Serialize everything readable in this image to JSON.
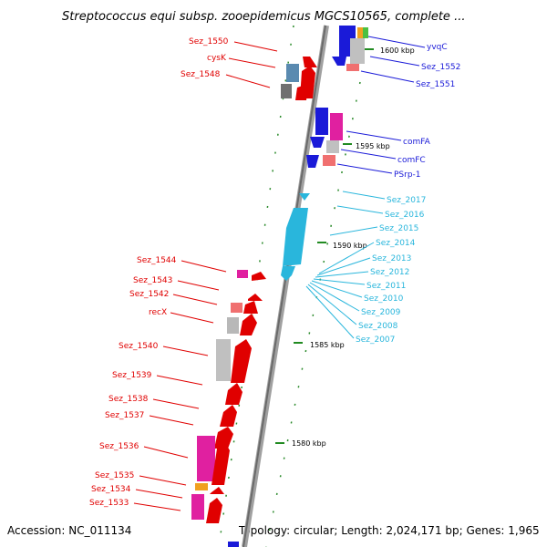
{
  "title": "Streptococcus equi subsp. zooepidemicus MGCS10565, complete ...",
  "accession": "Accession: NC_011134",
  "topology": "Topology: circular; Length: 2,024,171 bp; Genes: 1,965",
  "ticks": [
    "1600 kbp",
    "1595 kbp",
    "1590 kbp",
    "1585 kbp",
    "1580 kbp"
  ],
  "colors": {
    "backbone": "#808080",
    "red": "#e00000",
    "blue": "#1a1ad8",
    "cyan": "#29b6dc",
    "magenta": "#e020a0",
    "gray": "#b0b0b0",
    "steel": "#5a8ab0",
    "orange": "#f0a020",
    "pink": "#f07070",
    "tick": "#228b22"
  },
  "genes_left": [
    "Sez_1550",
    "cysK",
    "Sez_1548",
    "Sez_1544",
    "Sez_1543",
    "Sez_1542",
    "recX",
    "Sez_1540",
    "Sez_1539",
    "Sez_1538",
    "Sez_1537",
    "Sez_1536",
    "Sez_1535",
    "Sez_1534",
    "Sez_1533"
  ],
  "genes_right_blue": [
    "yvqC",
    "Sez_1552",
    "Sez_1551",
    "comFA",
    "comFC",
    "PSrp-1"
  ],
  "genes_right_cyan": [
    "Sez_2017",
    "Sez_2016",
    "Sez_2015",
    "Sez_2014",
    "Sez_2013",
    "Sez_2012",
    "Sez_2011",
    "Sez_2010",
    "Sez_2009",
    "Sez_2008",
    "Sez_2007"
  ]
}
